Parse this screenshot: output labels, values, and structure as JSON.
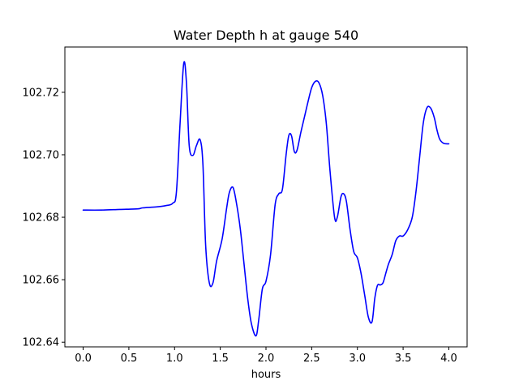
{
  "chart_data": {
    "type": "line",
    "title": "Water Depth h at gauge 540",
    "xlabel": "hours",
    "ylabel": "",
    "xlim": [
      -0.2,
      4.2
    ],
    "ylim": [
      102.6385,
      102.7345
    ],
    "x_ticks": [
      0.0,
      0.5,
      1.0,
      1.5,
      2.0,
      2.5,
      3.0,
      3.5,
      4.0
    ],
    "x_tick_labels": [
      "0.0",
      "0.5",
      "1.0",
      "1.5",
      "2.0",
      "2.5",
      "3.0",
      "3.5",
      "4.0"
    ],
    "y_ticks": [
      102.64,
      102.66,
      102.68,
      102.7,
      102.72
    ],
    "y_tick_labels": [
      "102.64",
      "102.66",
      "102.68",
      "102.70",
      "102.72"
    ],
    "grid": false,
    "series": [
      {
        "color": "#0000ff",
        "x": [
          0.0,
          0.2,
          0.4,
          0.6,
          0.65,
          0.8,
          0.9,
          0.98,
          1.02,
          1.06,
          1.1,
          1.13,
          1.16,
          1.2,
          1.24,
          1.28,
          1.31,
          1.34,
          1.38,
          1.42,
          1.46,
          1.52,
          1.57,
          1.6,
          1.64,
          1.68,
          1.72,
          1.76,
          1.8,
          1.84,
          1.89,
          1.92,
          1.96,
          2.0,
          2.05,
          2.1,
          2.14,
          2.18,
          2.22,
          2.25,
          2.28,
          2.31,
          2.34,
          2.38,
          2.42,
          2.46,
          2.5,
          2.54,
          2.58,
          2.62,
          2.66,
          2.7,
          2.75,
          2.78,
          2.82,
          2.85,
          2.88,
          2.92,
          2.96,
          3.0,
          3.04,
          3.08,
          3.12,
          3.16,
          3.19,
          3.22,
          3.25,
          3.28,
          3.31,
          3.34,
          3.38,
          3.42,
          3.46,
          3.5,
          3.55,
          3.6,
          3.64,
          3.68,
          3.72,
          3.76,
          3.8,
          3.84,
          3.87,
          3.9,
          3.94,
          3.98,
          4.0
        ],
        "y": [
          102.6823,
          102.6823,
          102.6825,
          102.6827,
          102.683,
          102.6833,
          102.6837,
          102.6845,
          102.688,
          102.71,
          102.7292,
          102.723,
          102.703,
          102.6998,
          102.703,
          102.7048,
          102.697,
          102.671,
          102.659,
          102.659,
          102.666,
          102.673,
          102.683,
          102.688,
          102.6895,
          102.684,
          102.676,
          102.665,
          102.654,
          102.646,
          102.642,
          102.647,
          102.657,
          102.6595,
          102.668,
          102.684,
          102.6875,
          102.689,
          102.7,
          102.7062,
          102.706,
          102.701,
          102.7015,
          102.707,
          102.712,
          102.717,
          102.7215,
          102.7235,
          102.723,
          102.719,
          102.71,
          102.695,
          102.68,
          102.68,
          102.6865,
          102.6875,
          102.685,
          102.676,
          102.669,
          102.667,
          102.662,
          102.655,
          102.648,
          102.6465,
          102.654,
          102.6582,
          102.6583,
          102.659,
          102.662,
          102.665,
          102.668,
          102.6725,
          102.674,
          102.674,
          102.676,
          102.68,
          102.688,
          102.699,
          102.71,
          102.715,
          102.715,
          102.712,
          102.708,
          102.705,
          102.7037,
          102.7035,
          102.7035
        ]
      }
    ]
  }
}
